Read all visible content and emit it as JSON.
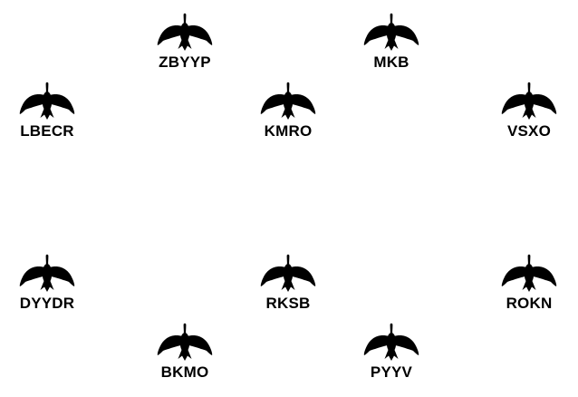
{
  "icon": "goose-silhouette-icon",
  "color": "#000000",
  "birds": [
    {
      "id": "ZBYYP",
      "label": "ZBYYP"
    },
    {
      "id": "MKB",
      "label": "MKB"
    },
    {
      "id": "LBECR",
      "label": "LBECR"
    },
    {
      "id": "KMRO",
      "label": "KMRO"
    },
    {
      "id": "VSXO",
      "label": "VSXO"
    },
    {
      "id": "DYYDR",
      "label": "DYYDR"
    },
    {
      "id": "RKSB",
      "label": "RKSB"
    },
    {
      "id": "ROKN",
      "label": "ROKN"
    },
    {
      "id": "BKMO",
      "label": "BKMO"
    },
    {
      "id": "PYYV",
      "label": "PYYV"
    }
  ]
}
